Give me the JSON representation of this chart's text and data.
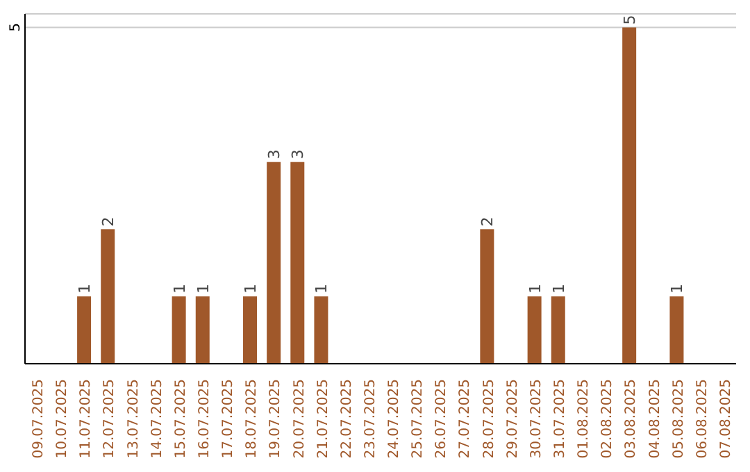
{
  "chart_data": {
    "type": "bar",
    "categories": [
      "09.07.2025",
      "10.07.2025",
      "11.07.2025",
      "12.07.2025",
      "13.07.2025",
      "14.07.2025",
      "15.07.2025",
      "16.07.2025",
      "17.07.2025",
      "18.07.2025",
      "19.07.2025",
      "20.07.2025",
      "21.07.2025",
      "22.07.2025",
      "23.07.2025",
      "24.07.2025",
      "25.07.2025",
      "26.07.2025",
      "27.07.2025",
      "28.07.2025",
      "29.07.2025",
      "30.07.2025",
      "31.07.2025",
      "01.08.2025",
      "02.08.2025",
      "03.08.2025",
      "04.08.2025",
      "05.08.2025",
      "06.08.2025",
      "07.08.2025"
    ],
    "values": [
      0,
      0,
      1,
      2,
      0,
      0,
      1,
      1,
      0,
      1,
      3,
      3,
      1,
      0,
      0,
      0,
      0,
      0,
      0,
      2,
      0,
      1,
      1,
      0,
      0,
      5,
      0,
      1,
      0,
      0
    ],
    "value_labels": [
      null,
      null,
      "1",
      "2",
      null,
      null,
      "1",
      "1",
      null,
      "1",
      "3",
      "3",
      "1",
      null,
      null,
      null,
      null,
      null,
      null,
      "2",
      null,
      "1",
      "1",
      null,
      null,
      "5",
      null,
      "1",
      null,
      null
    ],
    "color": "#a0582a",
    "ylim": [
      0,
      5.2
    ],
    "yticks": [
      5
    ],
    "grid": "y"
  }
}
